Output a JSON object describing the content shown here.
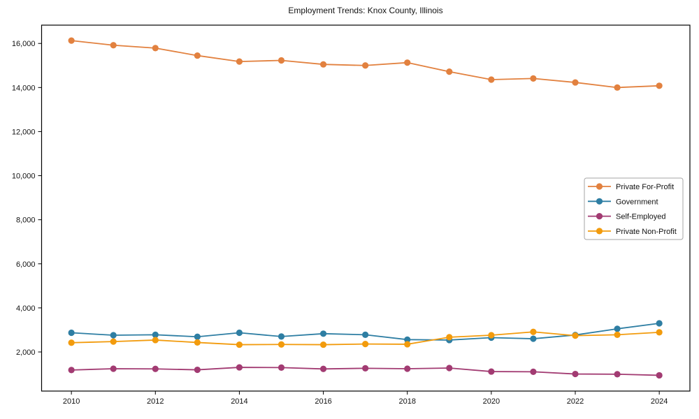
{
  "chart_data": {
    "type": "line",
    "title": "Employment Trends: Knox County, Illinois",
    "x": [
      2010,
      2011,
      2012,
      2013,
      2014,
      2015,
      2016,
      2017,
      2018,
      2019,
      2020,
      2021,
      2022,
      2023,
      2024
    ],
    "series": [
      {
        "name": "Private For-Profit",
        "color": "#E2813F",
        "values": [
          16130,
          15920,
          15790,
          15450,
          15180,
          15230,
          15050,
          15000,
          15130,
          14720,
          14360,
          14410,
          14230,
          14000,
          14080
        ]
      },
      {
        "name": "Government",
        "color": "#2E7EA3",
        "values": [
          2870,
          2760,
          2780,
          2690,
          2870,
          2700,
          2830,
          2780,
          2560,
          2540,
          2650,
          2600,
          2770,
          3050,
          3300
        ]
      },
      {
        "name": "Self-Employed",
        "color": "#A23B72",
        "values": [
          1180,
          1240,
          1230,
          1190,
          1300,
          1290,
          1230,
          1260,
          1240,
          1270,
          1110,
          1100,
          1000,
          990,
          940
        ]
      },
      {
        "name": "Private Non-Profit",
        "color": "#F29B0D",
        "values": [
          2420,
          2470,
          2540,
          2430,
          2330,
          2340,
          2330,
          2360,
          2350,
          2670,
          2760,
          2910,
          2740,
          2780,
          2890
        ]
      }
    ],
    "xticks": {
      "values": [
        2010,
        2012,
        2014,
        2016,
        2018,
        2020,
        2022,
        2024
      ],
      "labels": [
        "2010",
        "2012",
        "2014",
        "2016",
        "2018",
        "2020",
        "2022",
        "2024"
      ]
    },
    "yticks": {
      "values": [
        2000,
        4000,
        6000,
        8000,
        10000,
        12000,
        14000,
        16000
      ],
      "labels": [
        "2,000",
        "4,000",
        "6,000",
        "8,000",
        "10,000",
        "12,000",
        "14,000",
        "16,000"
      ]
    },
    "xlim": [
      2009.29,
      2024.73
    ],
    "ylim": [
      225,
      16831
    ],
    "legend": {
      "position": "center-right"
    },
    "colors": {
      "axis": "#000000",
      "tick_label": "#111111",
      "legend_border": "#a6a6a6",
      "background": "#ffffff"
    }
  }
}
